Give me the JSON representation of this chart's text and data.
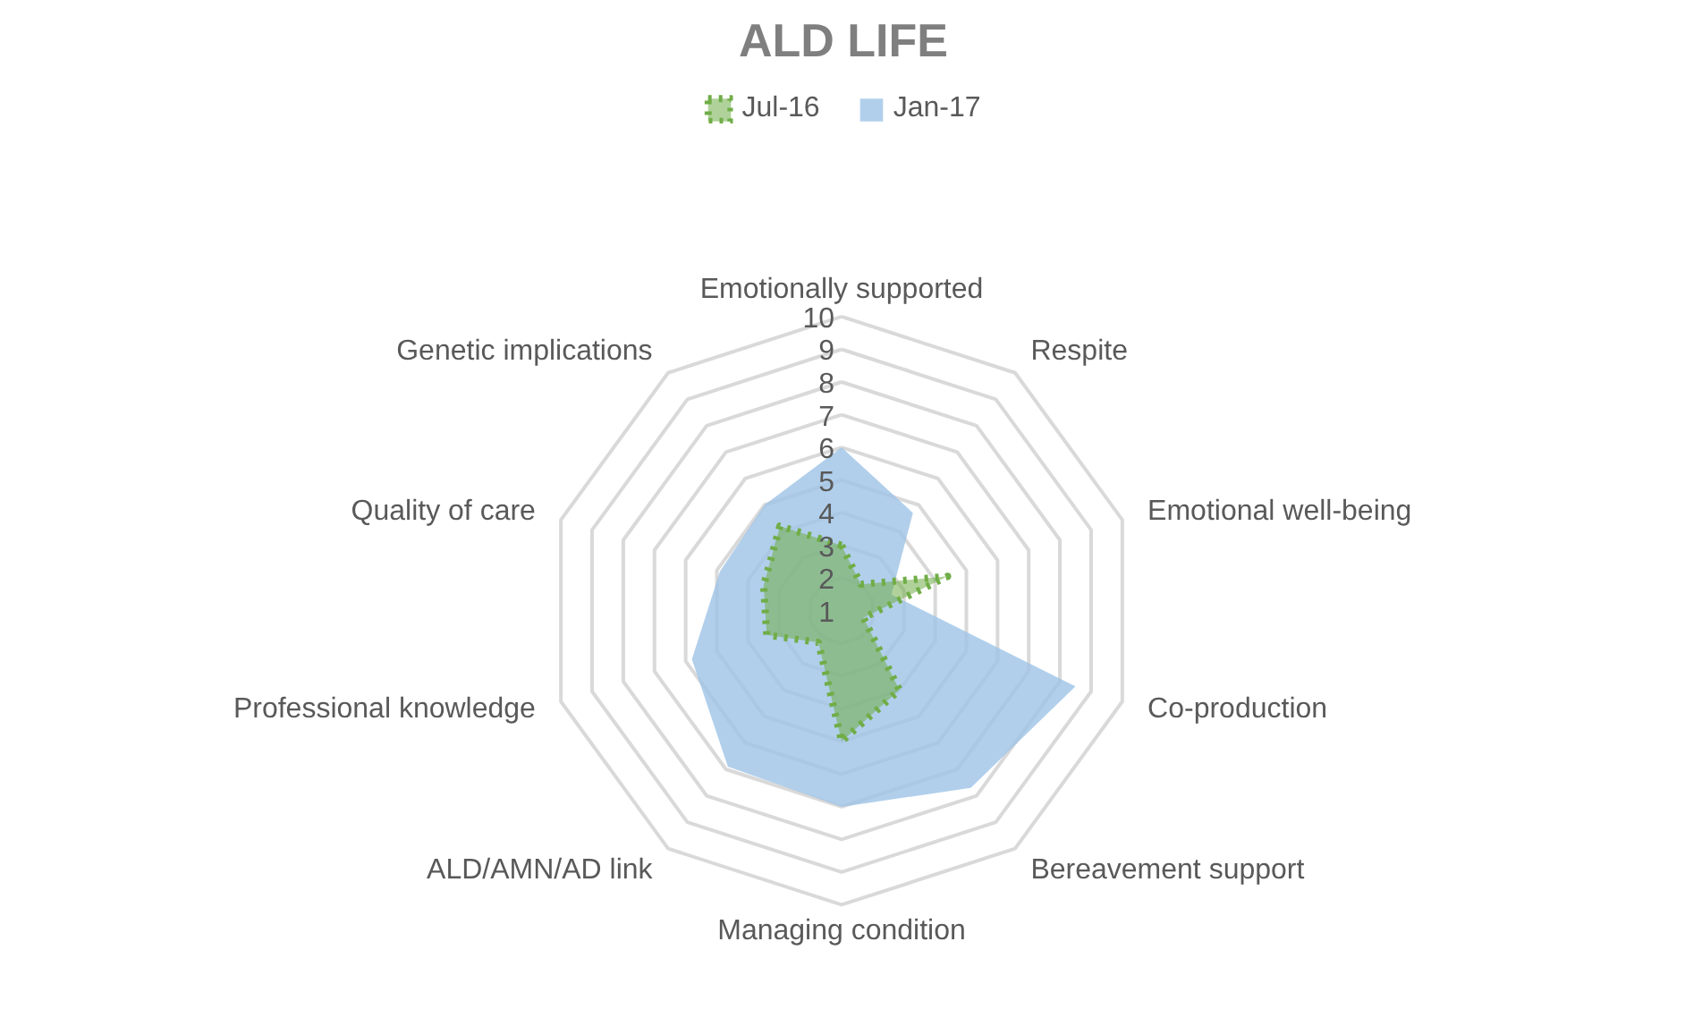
{
  "chart_data": {
    "type": "radar",
    "title": "ALD LIFE",
    "categories": [
      "Emotionally supported",
      "Respite",
      "Emotional well-being",
      "Co-production",
      "Bereavement support",
      "Managing condition",
      "ALD/AMN/AD link",
      "Professional knowledge",
      "Quality of care",
      "Genetic implications"
    ],
    "series": [
      {
        "name": "Jul-16",
        "color": "#70ad47",
        "line_style": "dotted",
        "values": [
          3.0,
          2.0,
          4.4,
          1.7,
          4.0,
          5.0,
          2.2,
          3.4,
          3.5,
          4.2
        ]
      },
      {
        "name": "Jan-17",
        "color": "#9dc3e6",
        "values": [
          6.0,
          4.7,
          2.6,
          8.5,
          7.7,
          7.0,
          6.9,
          5.8,
          4.9,
          5.0
        ]
      }
    ],
    "ylim": [
      1,
      10
    ],
    "yticks": [
      1,
      2,
      3,
      4,
      5,
      6,
      7,
      8,
      9,
      10
    ],
    "grid": true,
    "legend": "top"
  }
}
